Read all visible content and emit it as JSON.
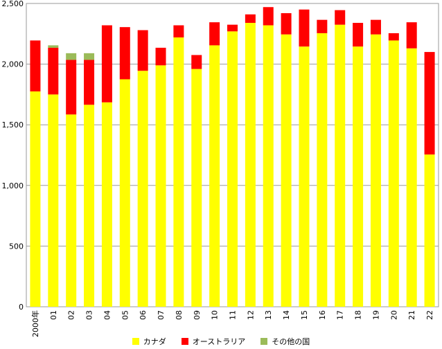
{
  "chart_data": {
    "type": "bar",
    "stacked": true,
    "title": "",
    "xlabel": "",
    "ylabel": "",
    "ylim": [
      0,
      2500
    ],
    "yticks": [
      0,
      500,
      1000,
      1500,
      2000,
      2500
    ],
    "ytick_labels": [
      "0",
      "500",
      "1,000",
      "1,500",
      "2,000",
      "2,500"
    ],
    "grid": true,
    "legend_position": "bottom",
    "categories": [
      "2000年",
      "01",
      "02",
      "03",
      "04",
      "05",
      "06",
      "07",
      "08",
      "09",
      "10",
      "11",
      "12",
      "13",
      "14",
      "15",
      "16",
      "17",
      "18",
      "19",
      "20",
      "21",
      "22"
    ],
    "series": [
      {
        "name": "カナダ",
        "color": "#ffff00",
        "values": [
          1775,
          1750,
          1585,
          1665,
          1685,
          1875,
          1945,
          1990,
          2220,
          1960,
          2155,
          2270,
          2340,
          2320,
          2245,
          2145,
          2255,
          2325,
          2145,
          2245,
          2195,
          2130,
          1255
        ]
      },
      {
        "name": "オーストラリア",
        "color": "#ff0000",
        "values": [
          420,
          385,
          450,
          370,
          635,
          430,
          335,
          145,
          100,
          115,
          190,
          55,
          70,
          150,
          175,
          305,
          110,
          120,
          195,
          120,
          60,
          215,
          845
        ]
      },
      {
        "name": "その他の国",
        "color": "#9bbb59",
        "values": [
          0,
          20,
          55,
          55,
          0,
          0,
          0,
          0,
          0,
          0,
          0,
          0,
          0,
          0,
          0,
          0,
          0,
          0,
          0,
          0,
          0,
          0,
          0
        ]
      }
    ]
  }
}
